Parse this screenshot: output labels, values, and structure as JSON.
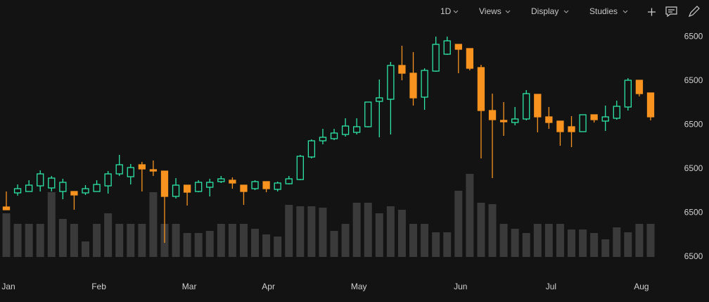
{
  "toolbar": {
    "interval": "1D",
    "menus": [
      "Views",
      "Display",
      "Studies"
    ]
  },
  "chart_data": {
    "type": "candlestick",
    "up_color": "#2ee6a6",
    "down_color": "#f7931e",
    "volume_color": "#3a3a3a",
    "categories": [
      "Jan",
      null,
      null,
      null,
      null,
      null,
      null,
      null,
      "Feb",
      null,
      null,
      null,
      null,
      null,
      null,
      null,
      "Mar",
      null,
      null,
      null,
      null,
      null,
      null,
      "Apr",
      null,
      null,
      null,
      null,
      null,
      null,
      null,
      "May",
      null,
      null,
      null,
      null,
      null,
      null,
      null,
      null,
      "Jun",
      null,
      null,
      null,
      null,
      null,
      null,
      null,
      "Jul",
      null,
      null,
      null,
      null,
      null,
      null,
      null,
      "Aug",
      null
    ],
    "open": [
      6499.892,
      6499.932,
      6499.936,
      6499.952,
      6499.946,
      6499.936,
      6499.936,
      6499.932,
      6499.936,
      6499.952,
      6499.986,
      6499.978,
      6500.012,
      6499.998,
      6499.994,
      6499.922,
      6499.954,
      6499.936,
      6499.948,
      6499.964,
      6499.968,
      6499.954,
      6499.944,
      6499.964,
      6499.942,
      6499.958,
      6499.97,
      6500.034,
      6500.08,
      6500.086,
      6500.098,
      6500.104,
      6500.12,
      6500.192,
      6500.198,
      6500.294,
      6500.272,
      6500.204,
      6500.278,
      6500.326,
      6500.354,
      6500.342,
      6500.288,
      6500.166,
      6500.138,
      6500.132,
      6500.142,
      6500.212,
      6500.148,
      6500.136,
      6500.12,
      6500.106,
      6500.154,
      6500.136,
      6500.144,
      6500.176,
      6500.252,
      6500.216
    ],
    "high": [
      6499.936,
      6499.956,
      6499.968,
      6499.996,
      6499.98,
      6499.972,
      6499.936,
      6499.954,
      6499.968,
      6499.994,
      6500.04,
      6500.014,
      6500.02,
      6500.024,
      6499.994,
      6499.974,
      6499.954,
      6499.968,
      6499.972,
      6499.98,
      6499.976,
      6499.954,
      6499.968,
      6499.964,
      6499.964,
      6499.98,
      6500.04,
      6500.084,
      6500.114,
      6500.114,
      6500.144,
      6500.144,
      6500.19,
      6500.254,
      6500.304,
      6500.35,
      6500.332,
      6500.286,
      6500.376,
      6500.376,
      6500.354,
      6500.342,
      6500.296,
      6500.214,
      6500.19,
      6500.176,
      6500.224,
      6500.212,
      6500.176,
      6500.136,
      6500.15,
      6500.154,
      6500.154,
      6500.18,
      6500.194,
      6500.258,
      6500.252,
      6500.216
    ],
    "low": [
      6499.884,
      6499.924,
      6499.936,
      6499.936,
      6499.936,
      6499.914,
      6499.884,
      6499.926,
      6499.936,
      6499.93,
      6499.98,
      6499.956,
      6499.936,
      6499.98,
      6499.79,
      6499.916,
      6499.896,
      6499.934,
      6499.922,
      6499.96,
      6499.944,
      6499.898,
      6499.94,
      6499.934,
      6499.936,
      6499.956,
      6499.968,
      6500.03,
      6500.07,
      6500.082,
      6500.092,
      6500.098,
      6500.118,
      6500.09,
      6500.098,
      6500.252,
      6500.18,
      6500.168,
      6500.276,
      6500.324,
      6500.272,
      6500.28,
      6500.03,
      6499.974,
      6500.094,
      6500.124,
      6500.138,
      6500.104,
      6500.114,
      6500.066,
      6500.062,
      6500.106,
      6500.132,
      6500.108,
      6500.14,
      6500.166,
      6500.206,
      6500.138
    ],
    "close": [
      6499.884,
      6499.944,
      6499.954,
      6499.986,
      6499.974,
      6499.962,
      6499.926,
      6499.944,
      6499.956,
      6499.986,
      6500.012,
      6500.004,
      6500.0,
      6499.994,
      6499.922,
      6499.954,
      6499.934,
      6499.962,
      6499.962,
      6499.972,
      6499.96,
      6499.936,
      6499.964,
      6499.944,
      6499.96,
      6499.972,
      6500.036,
      6500.08,
      6500.09,
      6500.102,
      6500.122,
      6500.12,
      6500.19,
      6500.202,
      6500.294,
      6500.272,
      6500.202,
      6500.28,
      6500.354,
      6500.364,
      6500.34,
      6500.286,
      6500.166,
      6500.14,
      6500.134,
      6500.142,
      6500.214,
      6500.148,
      6500.132,
      6500.106,
      6500.106,
      6500.154,
      6500.14,
      6500.148,
      6500.178,
      6500.252,
      6500.214,
      6500.148
    ],
    "volume": [
      62,
      47,
      47,
      47,
      92,
      54,
      47,
      22,
      47,
      62,
      47,
      47,
      47,
      92,
      47,
      47,
      34,
      34,
      37,
      47,
      47,
      47,
      40,
      32,
      29,
      74,
      72,
      72,
      70,
      37,
      47,
      77,
      77,
      62,
      72,
      67,
      47,
      47,
      35,
      35,
      94,
      118,
      77,
      75,
      47,
      40,
      34,
      47,
      47,
      47,
      39,
      39,
      34,
      25,
      42,
      35,
      47,
      47
    ],
    "volume_lim": [
      0,
      150
    ],
    "ylim": [
      6499.72,
      6500.4
    ],
    "yticks": [
      {
        "value": 6500.375,
        "label": "6500"
      },
      {
        "value": 6500.25,
        "label": "6500"
      },
      {
        "value": 6500.125,
        "label": "6500"
      },
      {
        "value": 6500.0,
        "label": "6500"
      },
      {
        "value": 6499.875,
        "label": "6500"
      },
      {
        "value": 6499.75,
        "label": "6500"
      }
    ]
  }
}
